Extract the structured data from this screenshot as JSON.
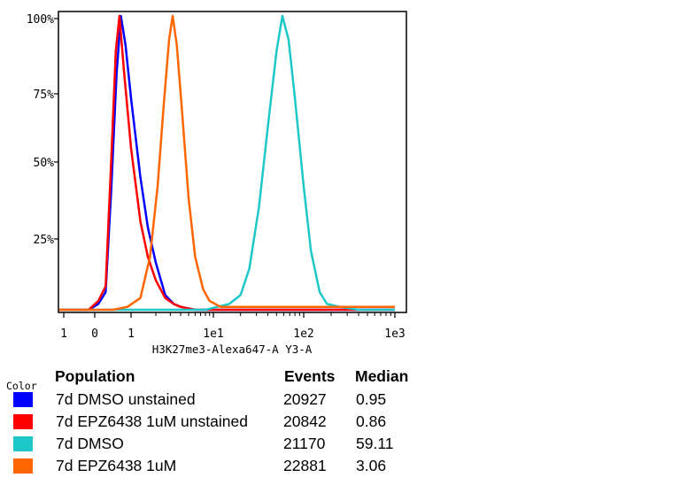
{
  "chart_data": {
    "type": "histogram",
    "xlabel": "H3K27me3-Alexa647-A Y3-A",
    "x_tick_labels": [
      "1",
      "0",
      "1",
      "1e1",
      "1e2",
      "1e3"
    ],
    "y_tick_labels": [
      "100%",
      "75%",
      "50%",
      "25%"
    ],
    "x_scale": "biexponential (log-like)",
    "ylim": [
      0,
      100
    ],
    "y_unit": "% of max",
    "grid": false,
    "series": [
      {
        "name": "7d DMSO unstained",
        "color": "#0000ff",
        "peak_x": 0.8,
        "points": [
          [
            -2,
            0
          ],
          [
            -0.9,
            0
          ],
          [
            -0.2,
            0
          ],
          [
            0.1,
            2
          ],
          [
            0.3,
            6
          ],
          [
            0.45,
            40
          ],
          [
            0.6,
            80
          ],
          [
            0.72,
            100
          ],
          [
            0.85,
            90
          ],
          [
            1.0,
            72
          ],
          [
            1.3,
            45
          ],
          [
            1.6,
            28
          ],
          [
            2.0,
            16
          ],
          [
            2.6,
            5
          ],
          [
            3.3,
            2
          ],
          [
            4,
            1
          ],
          [
            6,
            0
          ],
          [
            1000,
            0
          ]
        ]
      },
      {
        "name": "7d EPZ6438 1uM unstained",
        "color": "#ff0000",
        "peak_x": 0.72,
        "points": [
          [
            -2,
            0
          ],
          [
            -0.9,
            0
          ],
          [
            -0.2,
            0
          ],
          [
            0.1,
            3
          ],
          [
            0.3,
            8
          ],
          [
            0.45,
            50
          ],
          [
            0.58,
            88
          ],
          [
            0.68,
            100
          ],
          [
            0.8,
            82
          ],
          [
            1.0,
            55
          ],
          [
            1.3,
            30
          ],
          [
            1.6,
            18
          ],
          [
            2.0,
            10
          ],
          [
            2.6,
            4
          ],
          [
            3.3,
            2
          ],
          [
            4,
            1
          ],
          [
            6,
            0
          ],
          [
            1000,
            0
          ]
        ]
      },
      {
        "name": "7d DMSO",
        "color": "#1ec8c8",
        "peak_x": 60,
        "points": [
          [
            -2,
            0
          ],
          [
            0,
            0
          ],
          [
            1,
            0
          ],
          [
            8,
            0
          ],
          [
            15,
            2
          ],
          [
            20,
            5
          ],
          [
            25,
            14
          ],
          [
            32,
            35
          ],
          [
            40,
            62
          ],
          [
            50,
            88
          ],
          [
            58,
            100
          ],
          [
            68,
            92
          ],
          [
            80,
            72
          ],
          [
            100,
            42
          ],
          [
            120,
            20
          ],
          [
            150,
            6
          ],
          [
            180,
            2
          ],
          [
            250,
            1
          ],
          [
            400,
            0
          ],
          [
            1000,
            0
          ]
        ]
      },
      {
        "name": "7d EPZ6438 1uM",
        "color": "#ff6600",
        "peak_x": 3.2,
        "points": [
          [
            -2,
            0
          ],
          [
            -0.9,
            0
          ],
          [
            0.5,
            0
          ],
          [
            0.9,
            1
          ],
          [
            1.3,
            4
          ],
          [
            1.7,
            18
          ],
          [
            2.1,
            42
          ],
          [
            2.5,
            70
          ],
          [
            2.9,
            92
          ],
          [
            3.2,
            100
          ],
          [
            3.6,
            90
          ],
          [
            4.2,
            66
          ],
          [
            5.0,
            38
          ],
          [
            6.0,
            18
          ],
          [
            7.5,
            7
          ],
          [
            9,
            3
          ],
          [
            12,
            1
          ],
          [
            20,
            1
          ],
          [
            50,
            1
          ],
          [
            200,
            1
          ],
          [
            1000,
            1
          ]
        ]
      }
    ]
  },
  "legend": {
    "color_title": "Color",
    "headers": {
      "population": "Population",
      "events": "Events",
      "median": "Median"
    },
    "rows": [
      {
        "population": "7d DMSO unstained",
        "events": "20927",
        "median": "0.95",
        "color": "#0000ff"
      },
      {
        "population": "7d EPZ6438 1uM unstained",
        "events": "20842",
        "median": "0.86",
        "color": "#ff0000"
      },
      {
        "population": "7d DMSO",
        "events": "21170",
        "median": "59.11",
        "color": "#1ec8c8"
      },
      {
        "population": "7d EPZ6438 1uM",
        "events": "22881",
        "median": "3.06",
        "color": "#ff6600"
      }
    ]
  }
}
